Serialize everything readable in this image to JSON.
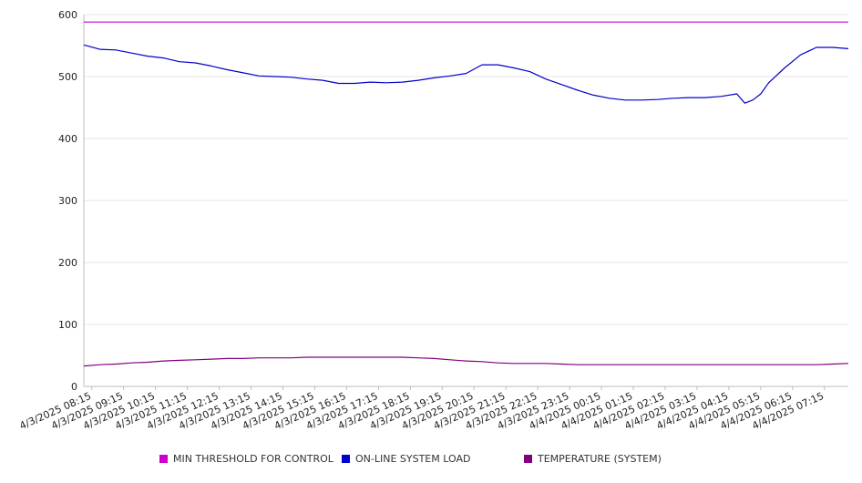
{
  "chart_data": {
    "type": "line",
    "yticks": [
      0,
      100,
      200,
      300,
      400,
      500,
      600
    ],
    "ylim": [
      0,
      600
    ],
    "grid": true,
    "legend_position": "bottom",
    "x_tick_labels": [
      "4/3/2025 08:15",
      "4/3/2025 09:15",
      "4/3/2025 10:15",
      "4/3/2025 11:15",
      "4/3/2025 12:15",
      "4/3/2025 13:15",
      "4/3/2025 14:15",
      "4/3/2025 15:15",
      "4/3/2025 16:15",
      "4/3/2025 17:15",
      "4/3/2025 18:15",
      "4/3/2025 19:15",
      "4/3/2025 20:15",
      "4/3/2025 21:15",
      "4/3/2025 22:15",
      "4/3/2025 23:15",
      "4/4/2025 00:15",
      "4/4/2025 01:15",
      "4/4/2025 02:15",
      "4/4/2025 03:15",
      "4/4/2025 04:15",
      "4/4/2025 05:15",
      "4/4/2025 06:15",
      "4/4/2025 07:15"
    ],
    "x": [
      "4/3/2025 08:00",
      "4/3/2025 08:30",
      "4/3/2025 09:00",
      "4/3/2025 09:30",
      "4/3/2025 10:00",
      "4/3/2025 10:30",
      "4/3/2025 11:00",
      "4/3/2025 11:30",
      "4/3/2025 12:00",
      "4/3/2025 12:30",
      "4/3/2025 13:00",
      "4/3/2025 13:30",
      "4/3/2025 14:00",
      "4/3/2025 14:30",
      "4/3/2025 15:00",
      "4/3/2025 15:30",
      "4/3/2025 16:00",
      "4/3/2025 16:30",
      "4/3/2025 17:00",
      "4/3/2025 17:30",
      "4/3/2025 18:00",
      "4/3/2025 18:30",
      "4/3/2025 19:00",
      "4/3/2025 19:30",
      "4/3/2025 20:00",
      "4/3/2025 20:30",
      "4/3/2025 21:00",
      "4/3/2025 21:30",
      "4/3/2025 22:00",
      "4/3/2025 22:30",
      "4/3/2025 23:00",
      "4/3/2025 23:30",
      "4/4/2025 00:00",
      "4/4/2025 00:30",
      "4/4/2025 01:00",
      "4/4/2025 01:30",
      "4/4/2025 02:00",
      "4/4/2025 02:30",
      "4/4/2025 03:00",
      "4/4/2025 03:30",
      "4/4/2025 04:00",
      "4/4/2025 04:30",
      "4/4/2025 04:45",
      "4/4/2025 05:00",
      "4/4/2025 05:15",
      "4/4/2025 05:30",
      "4/4/2025 06:00",
      "4/4/2025 06:30",
      "4/4/2025 07:00",
      "4/4/2025 07:30",
      "4/4/2025 08:00"
    ],
    "series": [
      {
        "name": "MIN THRESHOLD FOR CONTROL",
        "color": "#cc00cc",
        "values": [
          588,
          588,
          588,
          588,
          588,
          588,
          588,
          588,
          588,
          588,
          588,
          588,
          588,
          588,
          588,
          588,
          588,
          588,
          588,
          588,
          588,
          588,
          588,
          588,
          588,
          588,
          588,
          588,
          588,
          588,
          588,
          588,
          588,
          588,
          588,
          588,
          588,
          588,
          588,
          588,
          588,
          588,
          588,
          588,
          588,
          588,
          588,
          588,
          588,
          588,
          588
        ]
      },
      {
        "name": "ON-LINE SYSTEM LOAD",
        "color": "#0000cc",
        "values": [
          551,
          544,
          543,
          538,
          533,
          530,
          524,
          522,
          517,
          511,
          506,
          501,
          500,
          499,
          496,
          494,
          489,
          489,
          491,
          490,
          491,
          494,
          498,
          501,
          505,
          519,
          519,
          514,
          508,
          496,
          487,
          478,
          470,
          465,
          462,
          462,
          463,
          465,
          466,
          466,
          468,
          472,
          457,
          462,
          472,
          490,
          514,
          535,
          547,
          547,
          545
        ]
      },
      {
        "name": "TEMPERATURE (SYSTEM)",
        "color": "#800080",
        "values": [
          33,
          35,
          36,
          38,
          39,
          41,
          42,
          43,
          44,
          45,
          45,
          46,
          46,
          46,
          47,
          47,
          47,
          47,
          47,
          47,
          47,
          46,
          45,
          43,
          41,
          40,
          38,
          37,
          37,
          37,
          36,
          35,
          35,
          35,
          35,
          35,
          35,
          35,
          35,
          35,
          35,
          35,
          35,
          35,
          35,
          35,
          35,
          35,
          35,
          36,
          37
        ]
      }
    ]
  }
}
